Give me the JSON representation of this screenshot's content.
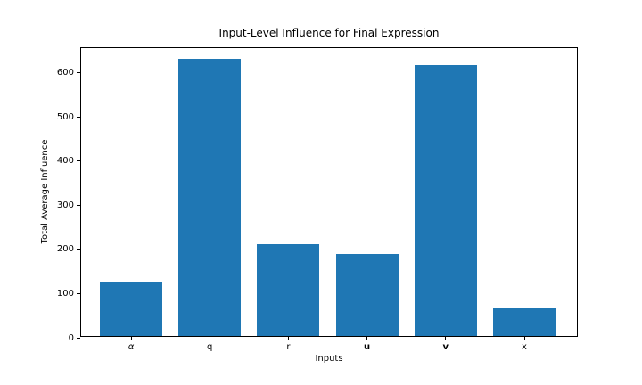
{
  "chart_data": {
    "type": "bar",
    "title": "Input-Level Influence for Final Expression",
    "xlabel": "Inputs",
    "ylabel": "Total Average Influence",
    "categories": [
      "α",
      "q",
      "r",
      "u",
      "v",
      "x"
    ],
    "category_styles": [
      "italic",
      "normal",
      "normal",
      "bold",
      "bold",
      "normal"
    ],
    "values": [
      123,
      627,
      207,
      186,
      613,
      63
    ],
    "yticks": [
      0,
      100,
      200,
      300,
      400,
      500,
      600
    ],
    "ylim": [
      0,
      656
    ],
    "grid": false,
    "legend": "none",
    "bar_color": "#1f77b4",
    "axis_color": "#000000",
    "background_color": "#ffffff"
  }
}
